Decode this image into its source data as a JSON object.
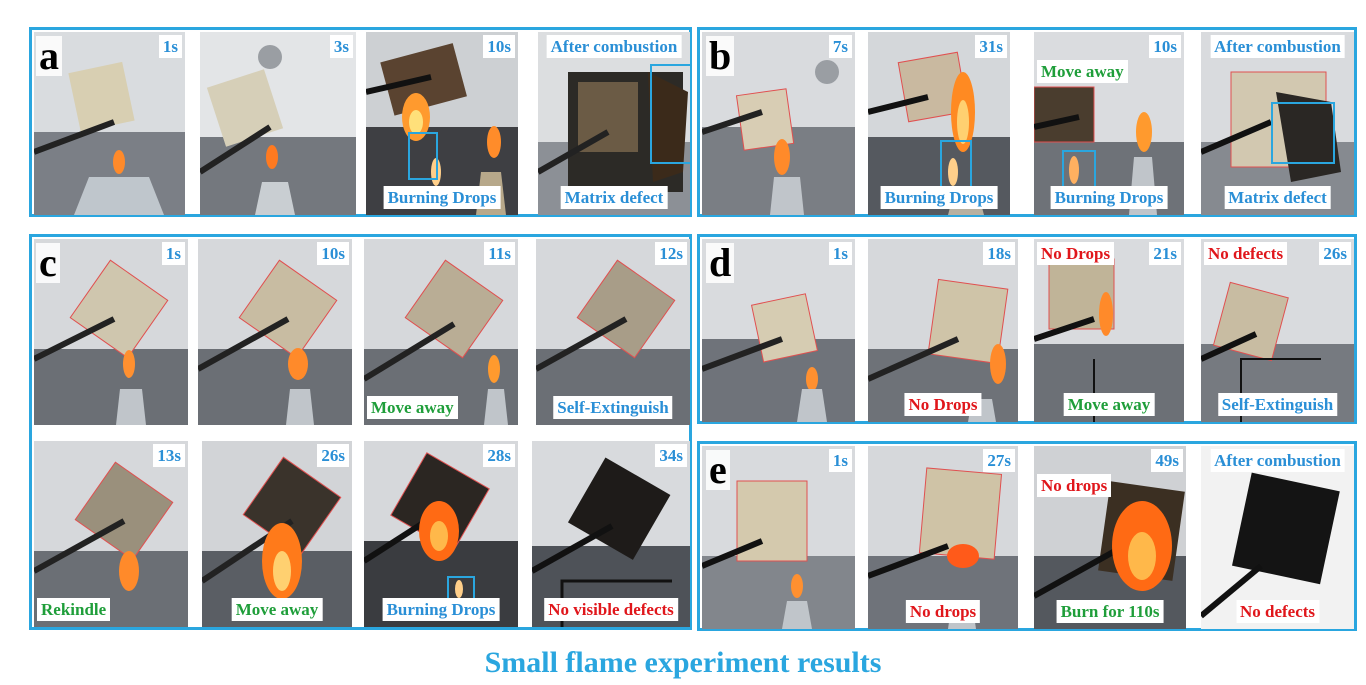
{
  "caption": "Small flame experiment results",
  "panels": {
    "a": {
      "label": "a",
      "frames": [
        {
          "time": "1s"
        },
        {
          "time": "3s"
        },
        {
          "time": "10s",
          "note": "Burning Drops"
        },
        {
          "time": "After combustion",
          "note": "Matrix defect"
        }
      ]
    },
    "b": {
      "label": "b",
      "frames": [
        {
          "time": "7s"
        },
        {
          "time": "31s",
          "note": "Burning Drops"
        },
        {
          "time": "10s",
          "top_note": "Move away",
          "note": "Burning Drops"
        },
        {
          "time": "After combustion",
          "note": "Matrix defect"
        }
      ]
    },
    "c": {
      "label": "c",
      "frames": [
        {
          "time": "1s"
        },
        {
          "time": "10s"
        },
        {
          "time": "11s",
          "note": "Move away"
        },
        {
          "time": "12s",
          "note": "Self-Extinguish"
        },
        {
          "time": "13s",
          "note": "Rekindle"
        },
        {
          "time": "26s",
          "note": "Move away"
        },
        {
          "time": "28s",
          "note": "Burning Drops"
        },
        {
          "time": "34s",
          "note": "No visible defects"
        }
      ]
    },
    "d": {
      "label": "d",
      "frames": [
        {
          "time": "1s"
        },
        {
          "time": "18s",
          "note": "No Drops"
        },
        {
          "time": "21s",
          "top_note": "No Drops",
          "note": "Move away"
        },
        {
          "time": "26s",
          "top_note": "No defects",
          "note": "Self-Extinguish"
        }
      ]
    },
    "e": {
      "label": "e",
      "frames": [
        {
          "time": "1s"
        },
        {
          "time": "27s",
          "note": "No drops"
        },
        {
          "time": "49s",
          "top_note": "No drops",
          "note": "Burn for 110s"
        },
        {
          "time": "After combustion",
          "note": "No defects"
        }
      ]
    }
  },
  "colors": {
    "frame_border": "#2aa6df",
    "time_text": "#2a8fd6",
    "good_note": "#1f9e3a",
    "bad_note": "#e0161b"
  }
}
